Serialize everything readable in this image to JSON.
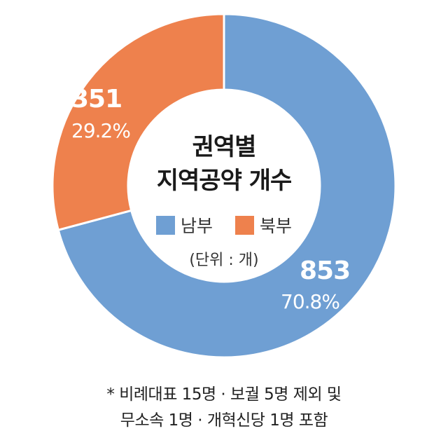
{
  "chart_data": {
    "type": "pie",
    "title_line1": "권역별",
    "title_line2": "지역공약 개수",
    "unit": "(단위 : 개)",
    "categories": [
      "남부",
      "북부"
    ],
    "values": [
      853,
      351
    ],
    "percents": [
      "70.8%",
      "29.2%"
    ],
    "colors": [
      "#6f9fd3",
      "#ee814d"
    ],
    "legend_position": "center"
  },
  "footnote": {
    "line1": "* 비례대표 15명 · 보궐 5명 제외 및",
    "line2": "무소속 1명 · 개혁신당 1명 포함"
  }
}
